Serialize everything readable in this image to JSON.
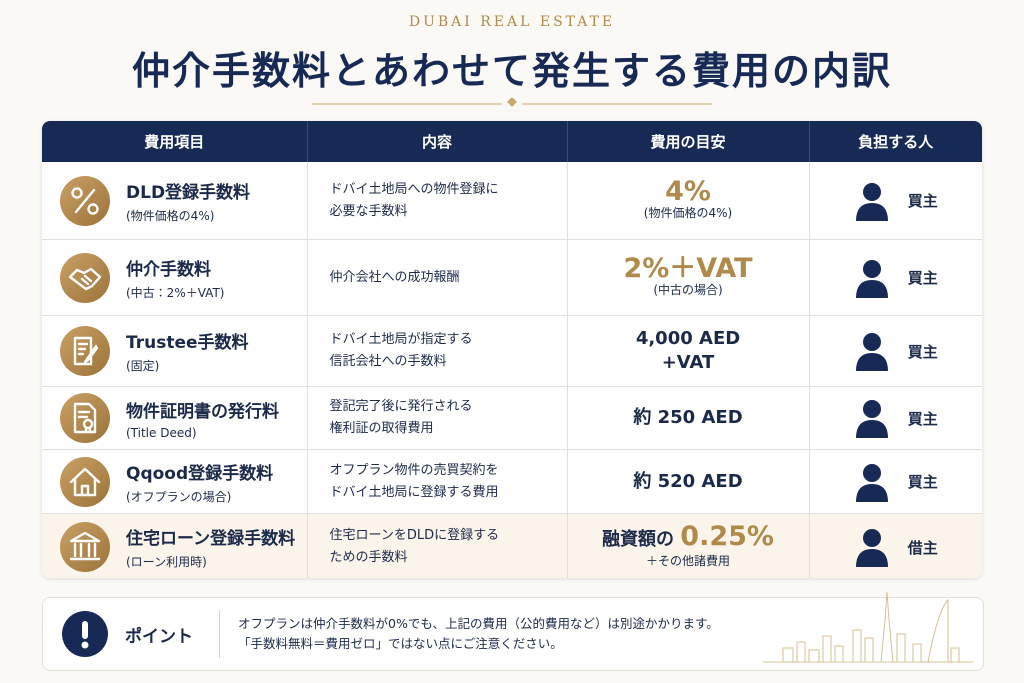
{
  "header": {
    "eyebrow": "DUBAI REAL ESTATE",
    "title": "仲介手数料とあわせて発生する費用の内訳"
  },
  "table": {
    "headers": [
      "費用項目",
      "内容",
      "費用の目安",
      "負担する人"
    ],
    "rows": [
      {
        "name": "DLD登録手数料",
        "sub": "(物件価格の4%)",
        "content": [
          "ドバイ土地局への物件登録に",
          "必要な手数料"
        ],
        "cost": [
          "4%"
        ],
        "cost_note": "(物件価格の4%)",
        "payer": "買主"
      },
      {
        "name": "仲介手数料",
        "sub": "(中古：2%＋VAT)",
        "content": [
          "仲介会社への成功報酬"
        ],
        "cost": [
          "2%＋VAT"
        ],
        "cost_note": "(中古の場合)",
        "payer": "買主"
      },
      {
        "name": "Trustee手数料",
        "sub": "(固定)",
        "content": [
          "ドバイ土地局が指定する",
          "信託会社への手数料"
        ],
        "cost": [
          "4,000 AED",
          "+VAT"
        ],
        "payer": "買主"
      },
      {
        "name": "物件証明書の発行料",
        "sub": "(Title Deed)",
        "content": [
          "登記完了後に発行される",
          "権利証の取得費用"
        ],
        "cost": [
          "約 250 AED"
        ],
        "payer": "買主"
      },
      {
        "name": "Qqood登録手数料",
        "sub": "(オフプランの場合)",
        "content": [
          "オフプラン物件の売買契約を",
          "ドバイ土地局に登録する費用"
        ],
        "cost": [
          "約 520 AED"
        ],
        "payer": "買主"
      },
      {
        "name": "住宅ローン登録手数料",
        "sub": "(ローン利用時)",
        "content": [
          "住宅ローンをDLDに登録する",
          "ための手数料"
        ],
        "cost": [
          "融資額の",
          "0.25%"
        ],
        "cost_note": "＋その他諸費用",
        "payer": "借主"
      }
    ]
  },
  "point": {
    "label": "ポイント",
    "lines": [
      "オフプランは仲介手数料が0%でも、上記の費用（公的費用など）は別途かかります。",
      "「手数料無料＝費用ゼロ」ではない点にご注意ください。"
    ]
  }
}
